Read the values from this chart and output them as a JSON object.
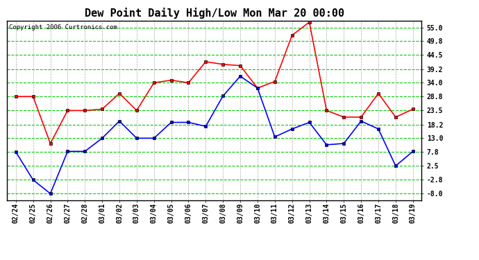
{
  "title": "Dew Point Daily High/Low Mon Mar 20 00:00",
  "copyright": "Copyright 2006 Curtronics.com",
  "x_labels": [
    "02/24",
    "02/25",
    "02/26",
    "02/27",
    "02/28",
    "03/01",
    "03/02",
    "03/03",
    "03/04",
    "03/05",
    "03/06",
    "03/07",
    "03/08",
    "03/09",
    "03/10",
    "03/11",
    "03/12",
    "03/13",
    "03/14",
    "03/15",
    "03/16",
    "03/17",
    "03/18",
    "03/19"
  ],
  "high_values": [
    28.8,
    28.8,
    11.0,
    23.5,
    23.5,
    24.0,
    30.0,
    23.5,
    34.0,
    35.0,
    34.0,
    42.0,
    41.0,
    40.5,
    32.0,
    34.5,
    52.0,
    57.0,
    23.5,
    21.0,
    21.0,
    30.0,
    21.0,
    24.0
  ],
  "low_values": [
    7.8,
    -2.8,
    -8.0,
    8.0,
    8.0,
    13.0,
    19.5,
    13.0,
    13.0,
    19.0,
    19.0,
    17.5,
    29.0,
    36.5,
    32.0,
    13.5,
    16.5,
    19.0,
    10.5,
    11.0,
    19.5,
    16.5,
    2.5,
    8.0
  ],
  "high_color": "#ff0000",
  "low_color": "#0000ff",
  "marker_color": "#000000",
  "bg_color": "#ffffff",
  "grid_color_y": "#00cc00",
  "grid_color_x": "#aaaaaa",
  "border_color": "#000000",
  "title_color": "#000000",
  "copyright_color": "#000000",
  "y_ticks": [
    -8.0,
    -2.8,
    2.5,
    7.8,
    13.0,
    18.2,
    23.5,
    28.8,
    34.0,
    39.2,
    44.5,
    49.8,
    55.0
  ],
  "ylim": [
    -10.5,
    57.5
  ],
  "title_fontsize": 11,
  "tick_fontsize": 7,
  "copyright_fontsize": 6.5
}
